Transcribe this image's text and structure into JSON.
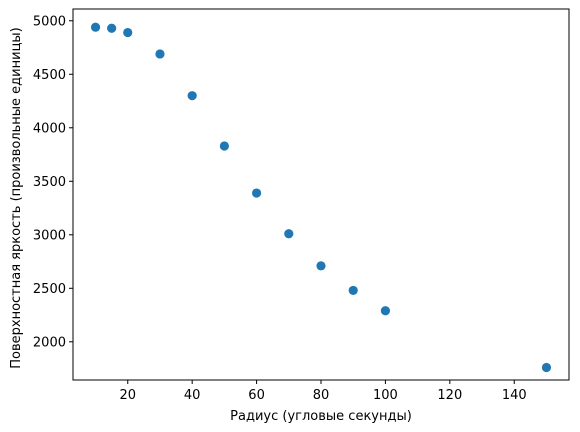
{
  "chart_data": {
    "type": "scatter",
    "title": "",
    "xlabel": "Радиус (угловые секунды)",
    "ylabel": "Поверхностная яркость (произвольные единицы)",
    "xlim": [
      3,
      157
    ],
    "ylim": [
      1643,
      5110
    ],
    "xticks": [
      20,
      40,
      60,
      80,
      100,
      120,
      140
    ],
    "yticks": [
      2000,
      2500,
      3000,
      3500,
      4000,
      4500,
      5000
    ],
    "grid": false,
    "color": "#1f77b4",
    "series": [
      {
        "x": [
          10,
          15,
          20,
          30,
          40,
          50,
          60,
          70,
          80,
          90,
          100,
          150
        ],
        "y": [
          4940,
          4930,
          4890,
          4690,
          4300,
          3830,
          3390,
          3010,
          2710,
          2480,
          2290,
          1760
        ]
      }
    ]
  }
}
